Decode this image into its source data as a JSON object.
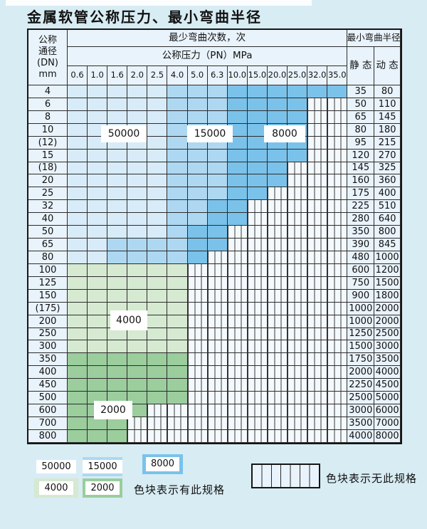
{
  "title": "金属软管公称压力、最小弯曲半径",
  "table": {
    "corner_lines": [
      "公称",
      "通径",
      "(DN)",
      "mm"
    ],
    "bend_cycles_header": "最少弯曲次数，次",
    "pressure_header": "公称压力（PN）MPa",
    "radius_header": "最小弯曲半径",
    "static_header": "静 态",
    "dynamic_header": "动 态",
    "pressures": [
      "0.6",
      "1.0",
      "1.6",
      "2.0",
      "2.5",
      "4.0",
      "5.0",
      "6.3",
      "10.0",
      "15.0",
      "20.0",
      "25.0",
      "32.0",
      "35.0"
    ],
    "cell_legend": {
      "L": "50000",
      "M": "15000",
      "D": "8000",
      "G": "4000",
      "g": "2000",
      "x": "no-spec"
    },
    "rows": [
      {
        "dn": "4",
        "cells": "LLLLLMMMDDDDDD",
        "static": "35",
        "dynamic": "80"
      },
      {
        "dn": "6",
        "cells": "LLLLLMMMDDDDxx",
        "static": "50",
        "dynamic": "110"
      },
      {
        "dn": "8",
        "cells": "LLLLLMMMDDDDxx",
        "static": "65",
        "dynamic": "145"
      },
      {
        "dn": "10",
        "cells": "LLLLLMMMDDDDxx",
        "static": "80",
        "dynamic": "180"
      },
      {
        "dn": "(12)",
        "cells": "LLLLLMMMDDDDxx",
        "static": "95",
        "dynamic": "215"
      },
      {
        "dn": "15",
        "cells": "LLLLLMMMDDDDxx",
        "static": "120",
        "dynamic": "270"
      },
      {
        "dn": "(18)",
        "cells": "LLLLLMMMDDDxxx",
        "static": "145",
        "dynamic": "325"
      },
      {
        "dn": "20",
        "cells": "LLLLLMMMDDDxxx",
        "static": "160",
        "dynamic": "360"
      },
      {
        "dn": "25",
        "cells": "LLLLLMMMDDxxxx",
        "static": "175",
        "dynamic": "400"
      },
      {
        "dn": "32",
        "cells": "LLLLLMMDDxxxxx",
        "static": "225",
        "dynamic": "510"
      },
      {
        "dn": "40",
        "cells": "LLLLLMMDDxxxxx",
        "static": "280",
        "dynamic": "640"
      },
      {
        "dn": "50",
        "cells": "LLLLLMDDxxxxxx",
        "static": "350",
        "dynamic": "800"
      },
      {
        "dn": "65",
        "cells": "LLMMMMDDxxxxxx",
        "static": "390",
        "dynamic": "845"
      },
      {
        "dn": "80",
        "cells": "LLMMMMDxxxxxxx",
        "static": "480",
        "dynamic": "1000"
      },
      {
        "dn": "100",
        "cells": "GGGGGGxxxxxxxx",
        "static": "600",
        "dynamic": "1200"
      },
      {
        "dn": "125",
        "cells": "GGGGGGxxxxxxxx",
        "static": "750",
        "dynamic": "1500"
      },
      {
        "dn": "150",
        "cells": "GGGGGGxxxxxxxx",
        "static": "900",
        "dynamic": "1800"
      },
      {
        "dn": "(175)",
        "cells": "GGGGGGxxxxxxxx",
        "static": "1000",
        "dynamic": "2000"
      },
      {
        "dn": "200",
        "cells": "GGGGGGxxxxxxxx",
        "static": "1000",
        "dynamic": "2000"
      },
      {
        "dn": "250",
        "cells": "GGGGGGxxxxxxxx",
        "static": "1250",
        "dynamic": "2500"
      },
      {
        "dn": "300",
        "cells": "GGGGGGxxxxxxxx",
        "static": "1500",
        "dynamic": "3000"
      },
      {
        "dn": "350",
        "cells": "ggggggxxxxxxxx",
        "static": "1750",
        "dynamic": "3500"
      },
      {
        "dn": "400",
        "cells": "ggggggxxxxxxxx",
        "static": "2000",
        "dynamic": "4000"
      },
      {
        "dn": "450",
        "cells": "ggggggxxxxxxxx",
        "static": "2250",
        "dynamic": "4500"
      },
      {
        "dn": "500",
        "cells": "ggggggxxxxxxxx",
        "static": "2500",
        "dynamic": "5000"
      },
      {
        "dn": "600",
        "cells": "ggggxxxxxxxxxx",
        "static": "3000",
        "dynamic": "6000"
      },
      {
        "dn": "700",
        "cells": "gggxxxxxxxxxxx",
        "static": "3500",
        "dynamic": "7000"
      },
      {
        "dn": "800",
        "cells": "gggxxxxxxxxxxx",
        "static": "4000",
        "dynamic": "8000"
      }
    ]
  },
  "region_labels": {
    "l50000": "50000",
    "l15000": "15000",
    "l8000": "8000",
    "l4000": "4000",
    "l2000": "2000"
  },
  "legend": {
    "items": [
      {
        "value": "50000",
        "color": "#d8ebf8"
      },
      {
        "value": "15000",
        "color": "#aed8f2"
      },
      {
        "value": "8000",
        "color": "#7ac2ea"
      },
      {
        "value": "4000",
        "color": "#d6e9d1"
      },
      {
        "value": "2000",
        "color": "#9bcd9d"
      }
    ],
    "has_spec_text": "色块表示有此规格",
    "no_spec_text": "色块表示无此规格"
  },
  "colors": {
    "page_background": "#d8ecf3",
    "cell_background": "#e9f3fb",
    "cycles_50000": "#d8ebf8",
    "cycles_15000": "#aed8f2",
    "cycles_8000": "#7ac2ea",
    "cycles_4000": "#d6e9d1",
    "cycles_2000": "#9bcd9d",
    "grid_line": "#2c2c2c"
  }
}
